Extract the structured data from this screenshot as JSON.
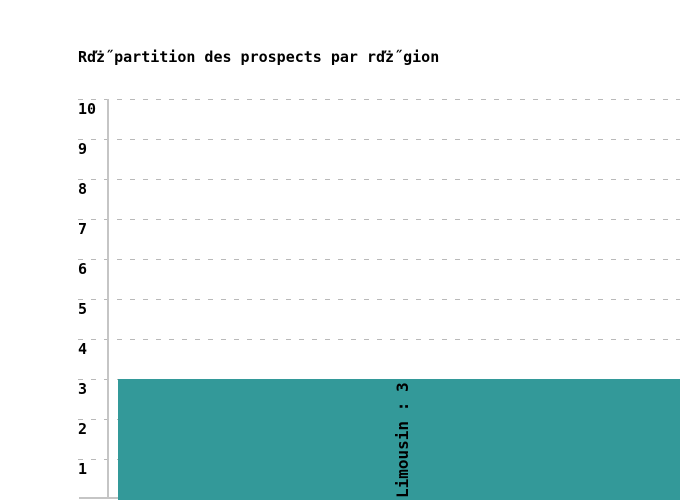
{
  "chart_data": {
    "type": "bar",
    "title": "Rďż˝partition des prospects par rďż˝gion",
    "categories": [
      "Limousin"
    ],
    "values": [
      3
    ],
    "bar_label": "Limousin : 3",
    "xlabel": "",
    "ylabel": "",
    "ylim": [
      0,
      10
    ],
    "yticks": [
      1,
      2,
      3,
      4,
      5,
      6,
      7,
      8,
      9,
      10
    ],
    "grid": "dashed-horizontal",
    "legend": "none",
    "colors": {
      "bar": "#339999",
      "grid": "#b9b9b9",
      "axis": "#c5c5c5",
      "text": "#000000",
      "background": "#ffffff"
    }
  }
}
